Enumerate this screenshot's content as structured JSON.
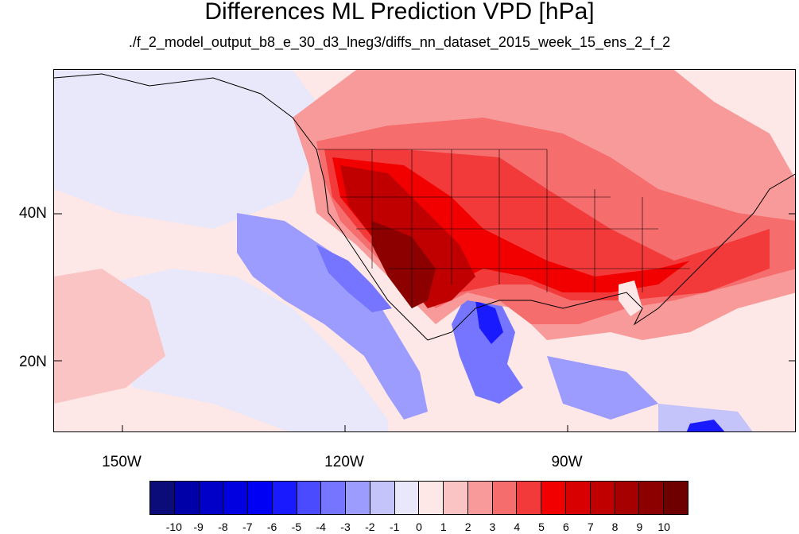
{
  "title": "Differences ML Prediction VPD [hPa]",
  "subtitle": "./f_2_model_output_b8_e_30_d3_lneg3/diffs_nn_dataset_2015_week_15_ens_2_f_2",
  "map": {
    "projection": "lat-lon",
    "lon_range": [
      -160,
      -60
    ],
    "lat_range": [
      11,
      60
    ],
    "lat_labels": [
      {
        "value": 40,
        "text": "40N"
      },
      {
        "value": 20,
        "text": "20N"
      }
    ],
    "lon_labels": [
      {
        "value": -150,
        "text": "150W"
      },
      {
        "value": -120,
        "text": "120W"
      },
      {
        "value": -90,
        "text": "90W"
      }
    ],
    "field": "VPD difference (ML prediction)"
  },
  "colorbar": {
    "labels": [
      "-10",
      "-9",
      "-8",
      "-7",
      "-6",
      "-5",
      "-4",
      "-3",
      "-2",
      "-1",
      "0",
      "1",
      "2",
      "3",
      "4",
      "5",
      "6",
      "7",
      "8",
      "9",
      "10"
    ],
    "colors": [
      "#0b0b7a",
      "#0000a8",
      "#0000c8",
      "#0000e0",
      "#0000f5",
      "#1a1aff",
      "#4a4aff",
      "#7575ff",
      "#9c9cff",
      "#c4c4fa",
      "#e8e8fa",
      "#fde7e7",
      "#fbc4c4",
      "#f89a9a",
      "#f56d6d",
      "#f23a3a",
      "#f20000",
      "#d80000",
      "#c00000",
      "#a60000",
      "#8c0000",
      "#6e0000"
    ]
  }
}
